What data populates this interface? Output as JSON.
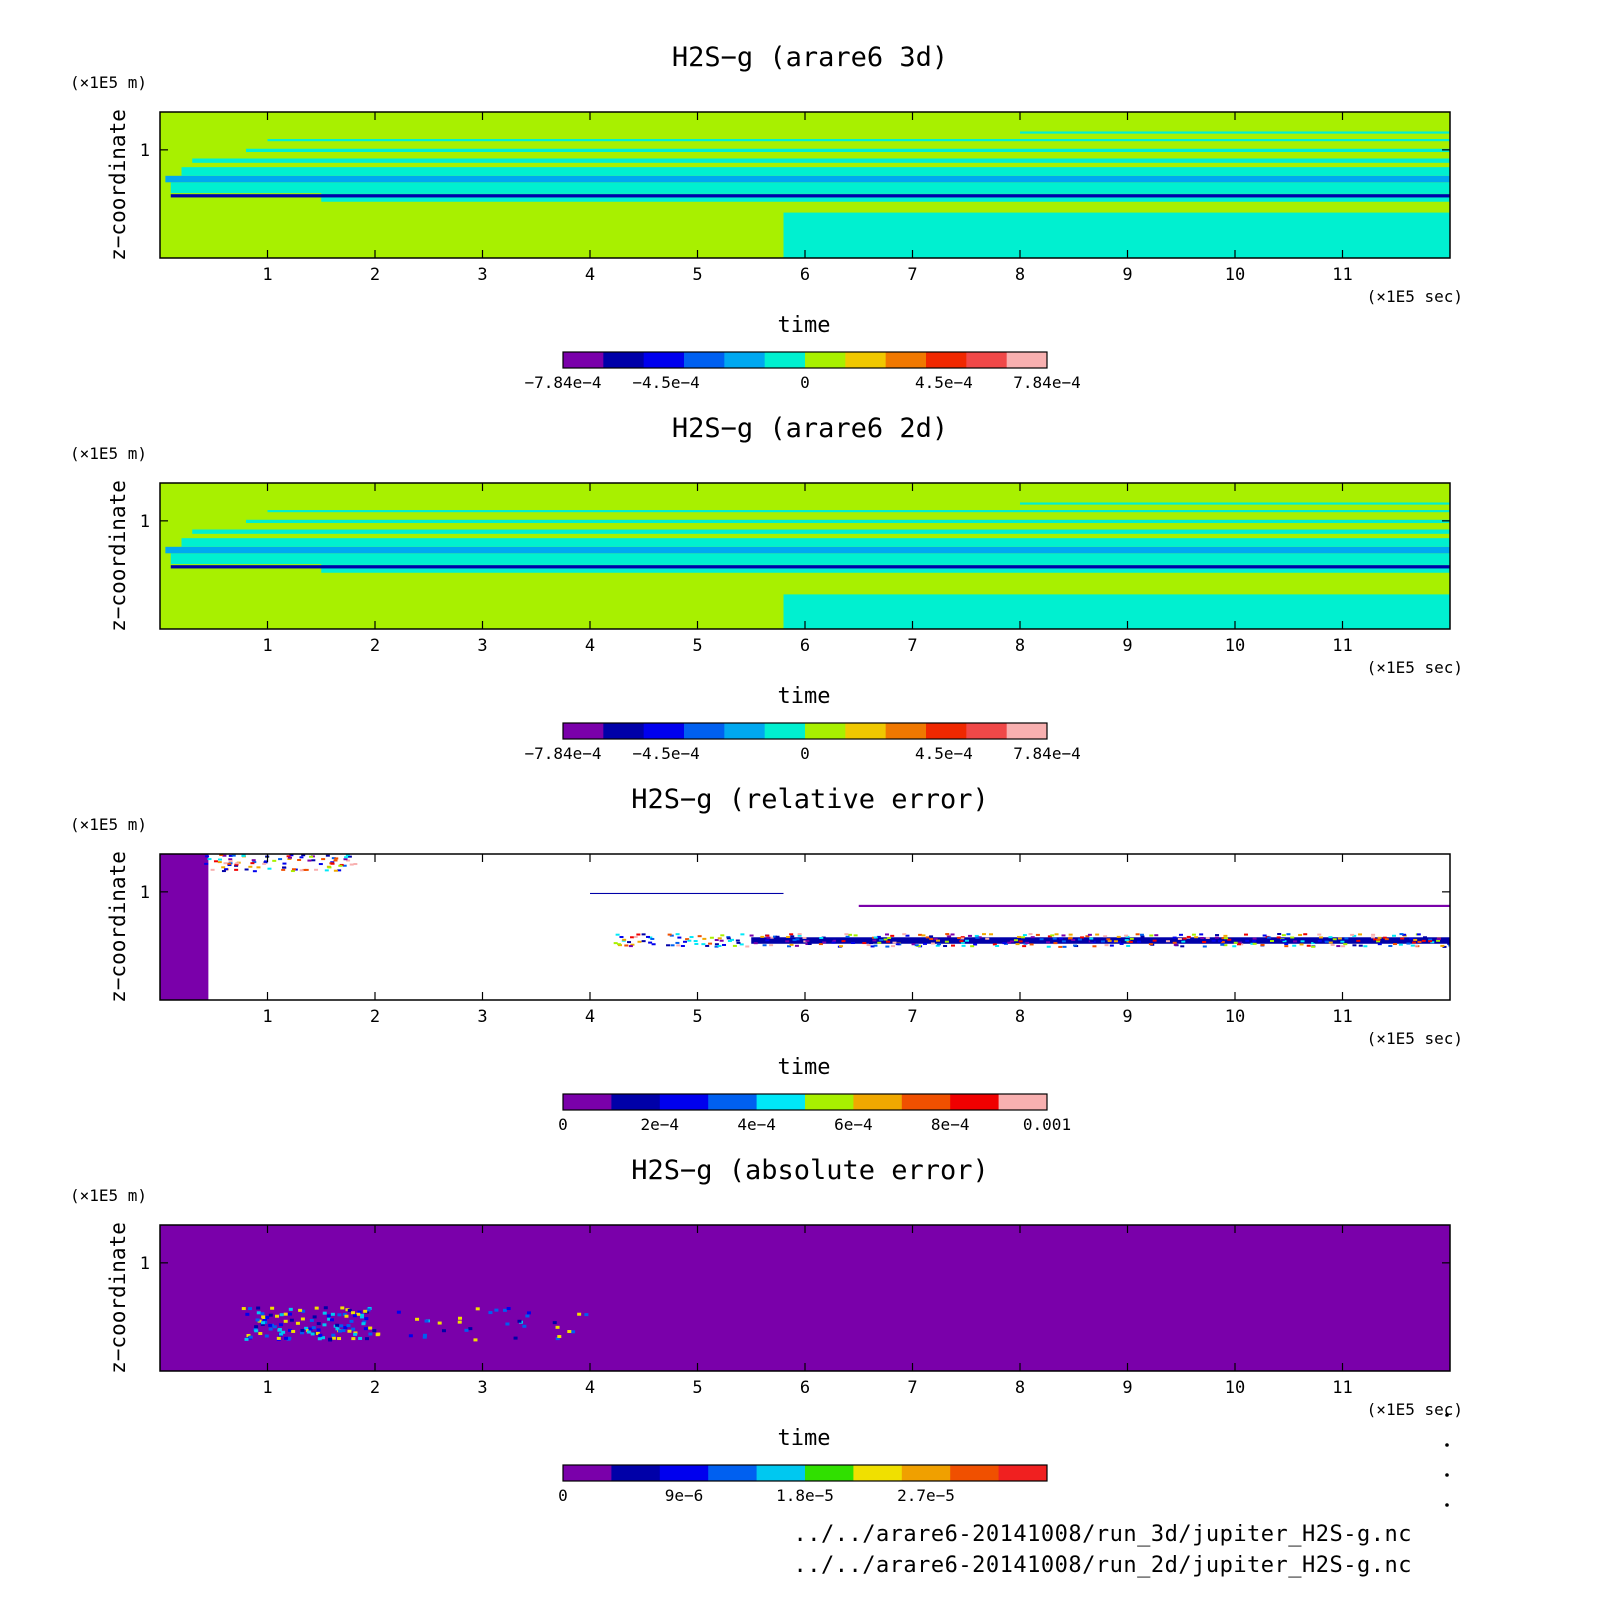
{
  "chart_data": [
    {
      "type": "heatmap",
      "title": "H2S−g (arare6 3d)",
      "xlabel": "time",
      "ylabel": "z−coordinate",
      "x_unit": "(×1E5 sec)",
      "y_unit": "(×1E5 m)",
      "xlim": [
        0,
        12
      ],
      "ylim": [
        0,
        1.35
      ],
      "x_ticks": [
        "1",
        "2",
        "3",
        "4",
        "5",
        "6",
        "7",
        "8",
        "9",
        "10",
        "11"
      ],
      "y_ticks": [
        "1"
      ],
      "colorbar": {
        "min": -0.000784,
        "max": 0.000784,
        "labels": [
          {
            "value": -0.000784,
            "text": "−7.84e−4"
          },
          {
            "value": -0.00045,
            "text": "−4.5e−4"
          },
          {
            "value": 0,
            "text": "0"
          },
          {
            "value": 0.00045,
            "text": "4.5e−4"
          },
          {
            "value": 0.000784,
            "text": "7.84e−4"
          }
        ],
        "colors": [
          "#7a00aa",
          "#0000a8",
          "#0000ee",
          "#0060f0",
          "#00a8f0",
          "#00f0d0",
          "#a8f000",
          "#f0c800",
          "#f07800",
          "#f02800",
          "#f04848",
          "#f8b0b0"
        ]
      },
      "background": "#a8f000",
      "bands": [
        {
          "y0": 0.0,
          "y1": 0.42,
          "x0": 5.8,
          "color": "#00f0d0"
        },
        {
          "y0": 0.6,
          "y1": 0.7,
          "x0": 0.1,
          "color": "#00f0d0"
        },
        {
          "y0": 0.52,
          "y1": 0.6,
          "x0": 1.5,
          "color": "#00f0d0"
        },
        {
          "y0": 0.7,
          "y1": 0.76,
          "x0": 0.05,
          "color": "#00a8f0"
        },
        {
          "y0": 0.76,
          "y1": 0.84,
          "x0": 0.2,
          "color": "#00f0d0"
        },
        {
          "y0": 0.88,
          "y1": 0.92,
          "x0": 0.3,
          "color": "#00f0d0"
        },
        {
          "y0": 0.98,
          "y1": 1.01,
          "x0": 0.8,
          "color": "#00f0d0"
        },
        {
          "y0": 1.08,
          "y1": 1.1,
          "x0": 1.0,
          "color": "#00f0d0"
        },
        {
          "y0": 1.15,
          "y1": 1.17,
          "x0": 8.0,
          "color": "#00f0d0"
        },
        {
          "y0": 0.56,
          "y1": 0.59,
          "x0": 0.1,
          "color": "#0000a8"
        }
      ]
    },
    {
      "type": "heatmap",
      "title": "H2S−g (arare6 2d)",
      "xlabel": "time",
      "ylabel": "z−coordinate",
      "x_unit": "(×1E5 sec)",
      "y_unit": "(×1E5 m)",
      "xlim": [
        0,
        12
      ],
      "ylim": [
        0,
        1.35
      ],
      "x_ticks": [
        "1",
        "2",
        "3",
        "4",
        "5",
        "6",
        "7",
        "8",
        "9",
        "10",
        "11"
      ],
      "y_ticks": [
        "1"
      ],
      "colorbar": {
        "min": -0.000784,
        "max": 0.000784,
        "labels": [
          {
            "value": -0.000784,
            "text": "−7.84e−4"
          },
          {
            "value": -0.00045,
            "text": "−4.5e−4"
          },
          {
            "value": 0,
            "text": "0"
          },
          {
            "value": 0.00045,
            "text": "4.5e−4"
          },
          {
            "value": 0.000784,
            "text": "7.84e−4"
          }
        ],
        "colors": [
          "#7a00aa",
          "#0000a8",
          "#0000ee",
          "#0060f0",
          "#00a8f0",
          "#00f0d0",
          "#a8f000",
          "#f0c800",
          "#f07800",
          "#f02800",
          "#f04848",
          "#f8b0b0"
        ]
      },
      "background": "#a8f000",
      "bands": [
        {
          "y0": 0.0,
          "y1": 0.32,
          "x0": 5.8,
          "color": "#00f0d0"
        },
        {
          "y0": 0.6,
          "y1": 0.7,
          "x0": 0.1,
          "color": "#00f0d0"
        },
        {
          "y0": 0.52,
          "y1": 0.6,
          "x0": 1.5,
          "color": "#00f0d0"
        },
        {
          "y0": 0.7,
          "y1": 0.76,
          "x0": 0.05,
          "color": "#00a8f0"
        },
        {
          "y0": 0.76,
          "y1": 0.84,
          "x0": 0.2,
          "color": "#00f0d0"
        },
        {
          "y0": 0.88,
          "y1": 0.92,
          "x0": 0.3,
          "color": "#00f0d0"
        },
        {
          "y0": 0.98,
          "y1": 1.01,
          "x0": 0.8,
          "color": "#00f0d0"
        },
        {
          "y0": 1.08,
          "y1": 1.1,
          "x0": 1.0,
          "color": "#00f0d0"
        },
        {
          "y0": 1.15,
          "y1": 1.17,
          "x0": 8.0,
          "color": "#00f0d0"
        },
        {
          "y0": 0.56,
          "y1": 0.59,
          "x0": 0.1,
          "color": "#0000a8"
        }
      ]
    },
    {
      "type": "heatmap",
      "title": "H2S−g (relative error)",
      "xlabel": "time",
      "ylabel": "z−coordinate",
      "x_unit": "(×1E5 sec)",
      "y_unit": "(×1E5 m)",
      "xlim": [
        0,
        12
      ],
      "ylim": [
        0,
        1.35
      ],
      "x_ticks": [
        "1",
        "2",
        "3",
        "4",
        "5",
        "6",
        "7",
        "8",
        "9",
        "10",
        "11"
      ],
      "y_ticks": [
        "1"
      ],
      "colorbar": {
        "min": 0,
        "max": 0.001,
        "labels": [
          {
            "value": 0,
            "text": "0"
          },
          {
            "value": 0.0002,
            "text": "2e−4"
          },
          {
            "value": 0.0004,
            "text": "4e−4"
          },
          {
            "value": 0.0006,
            "text": "6e−4"
          },
          {
            "value": 0.0008,
            "text": "8e−4"
          },
          {
            "value": 0.001,
            "text": "0.001"
          }
        ],
        "colors": [
          "#7a00aa",
          "#0000a8",
          "#0000ee",
          "#0060f0",
          "#00e8f8",
          "#a8f000",
          "#f0a800",
          "#f05000",
          "#f00000",
          "#f8b0b0"
        ]
      },
      "background": "#ffffff",
      "bands": [
        {
          "y0": 0.0,
          "y1": 1.35,
          "x0": 0.0,
          "x1": 0.45,
          "color": "#7a00aa"
        },
        {
          "y0": 0.52,
          "y1": 0.58,
          "x0": 5.5,
          "x1": 12.0,
          "color": "#0000a8"
        },
        {
          "y0": 0.86,
          "y1": 0.88,
          "x0": 6.5,
          "x1": 12.0,
          "color": "#7a00aa"
        },
        {
          "y0": 0.98,
          "y1": 0.99,
          "x0": 4.0,
          "x1": 5.8,
          "color": "#0000a8"
        }
      ]
    },
    {
      "type": "heatmap",
      "title": "H2S−g (absolute error)",
      "xlabel": "time",
      "ylabel": "z−coordinate",
      "x_unit": "(×1E5 sec)",
      "y_unit": "(×1E5 m)",
      "xlim": [
        0,
        12
      ],
      "ylim": [
        0,
        1.35
      ],
      "x_ticks": [
        "1",
        "2",
        "3",
        "4",
        "5",
        "6",
        "7",
        "8",
        "9",
        "10",
        "11"
      ],
      "y_ticks": [
        "1"
      ],
      "colorbar": {
        "min": 0,
        "max": 3.6e-05,
        "labels": [
          {
            "value": 0,
            "text": "0"
          },
          {
            "value": 9e-06,
            "text": "9e−6"
          },
          {
            "value": 1.8e-05,
            "text": "1.8e−5"
          },
          {
            "value": 2.7e-05,
            "text": "2.7e−5"
          }
        ],
        "colors": [
          "#7a00aa",
          "#0000a8",
          "#0000ee",
          "#0060f0",
          "#00c8f0",
          "#30e000",
          "#f0e000",
          "#f0a000",
          "#f05000",
          "#f02020"
        ]
      },
      "background": "#7a00aa",
      "bands": []
    }
  ],
  "footer": {
    "line1": "../../arare6-20141008/run_3d/jupiter_H2S-g.nc",
    "line2": "../../arare6-20141008/run_2d/jupiter_H2S-g.nc"
  }
}
